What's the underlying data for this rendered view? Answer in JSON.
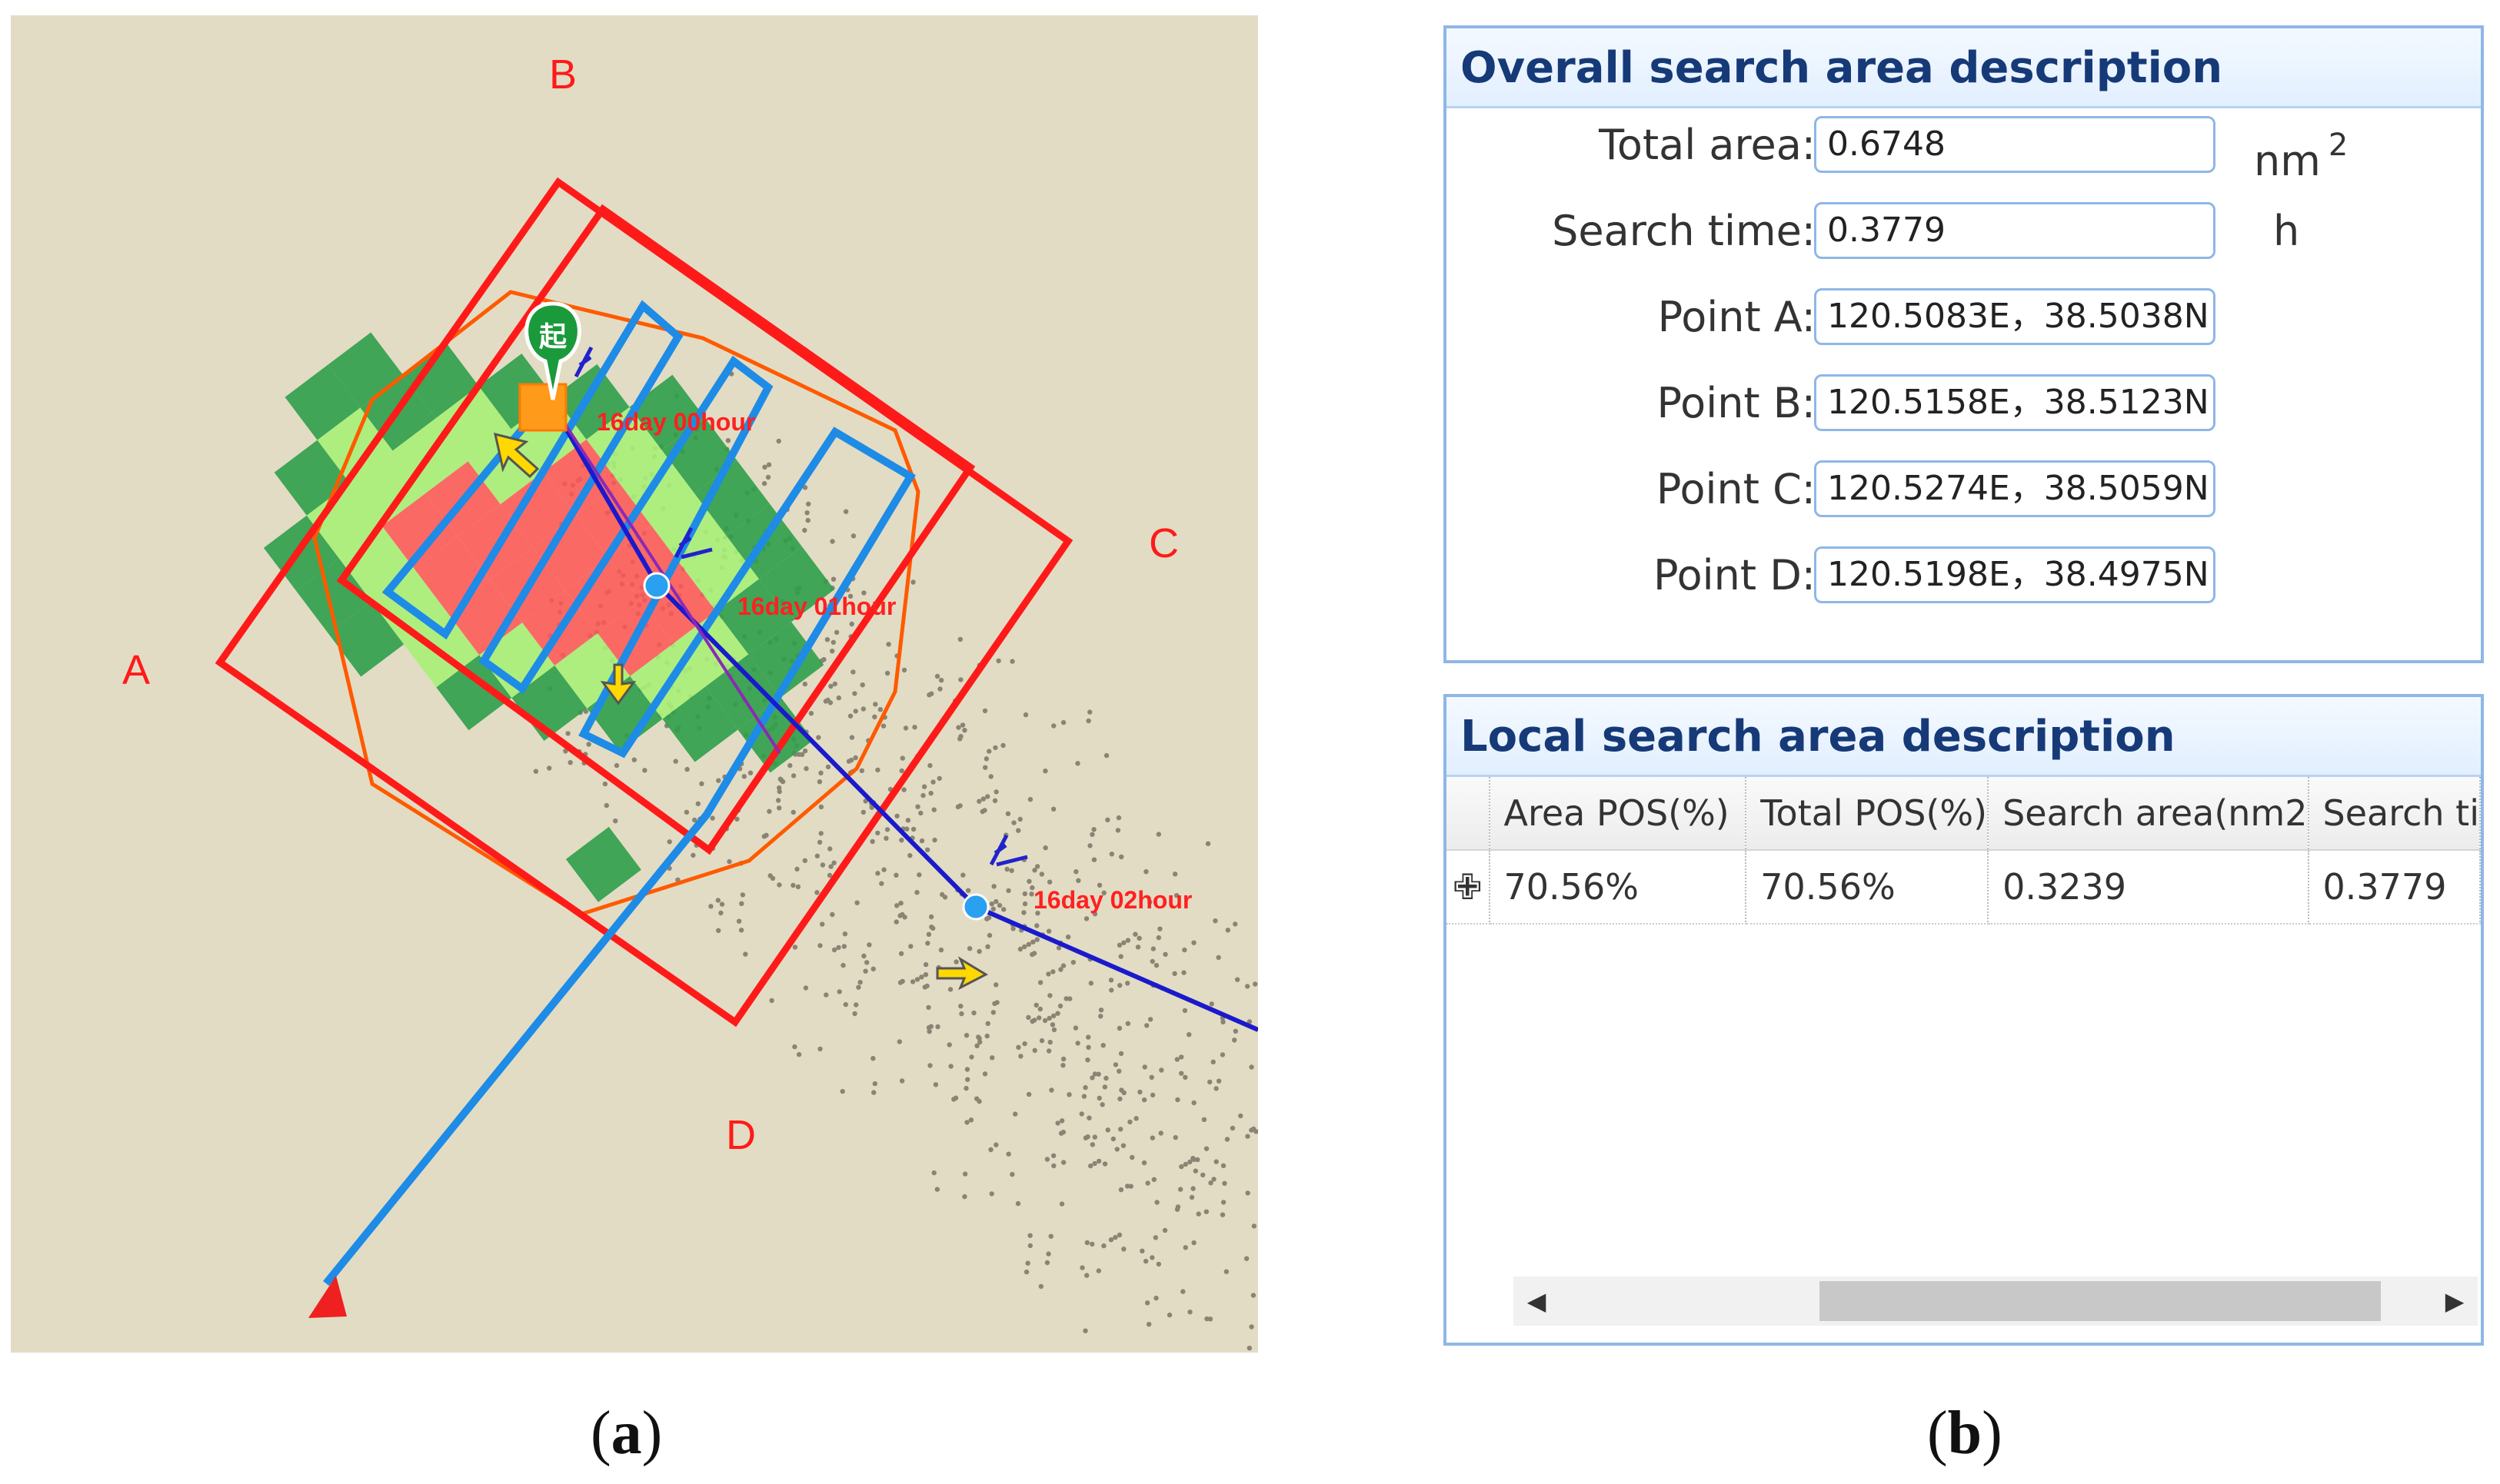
{
  "map": {
    "corner_labels": [
      "A",
      "B",
      "C",
      "D"
    ],
    "time_labels": [
      "16day 00hour",
      "16day 01hour",
      "16day 02hour"
    ],
    "start_marker_text": "起",
    "colors": {
      "background": "#e2dcc4",
      "area_border": "#ff1a1a",
      "hull": "#ff5a00",
      "track": "#1e8be6",
      "drift_line": "#1a1acc",
      "high_prob": "#ff5555",
      "mid_prob": "#a8f078",
      "low_prob": "#2f9e4a"
    }
  },
  "overall": {
    "title": "Overall search area description",
    "rows": [
      {
        "label": "Total area:",
        "value": "0.6748",
        "unit": "nm",
        "unit_sup": "2"
      },
      {
        "label": "Search time:",
        "value": "0.3779",
        "unit": "h",
        "unit_sup": ""
      },
      {
        "label": "Point A:",
        "value": "120.5083E，38.5038N",
        "unit": "",
        "unit_sup": ""
      },
      {
        "label": "Point B:",
        "value": "120.5158E，38.5123N",
        "unit": "",
        "unit_sup": ""
      },
      {
        "label": "Point C:",
        "value": "120.5274E，38.5059N",
        "unit": "",
        "unit_sup": ""
      },
      {
        "label": "Point D:",
        "value": "120.5198E，38.4975N",
        "unit": "",
        "unit_sup": ""
      }
    ]
  },
  "local": {
    "title": "Local search area description",
    "columns": [
      "Area POS(%)",
      "Total POS(%)",
      "Search area(nm2",
      "Search ti"
    ],
    "rows": [
      {
        "expander": "✙",
        "cells": [
          "70.56%",
          "70.56%",
          "0.3239",
          "0.3779"
        ]
      }
    ],
    "scroll_left": "◀",
    "scroll_right": "▶"
  },
  "captions": {
    "a": "(a)",
    "b": "(b)"
  }
}
